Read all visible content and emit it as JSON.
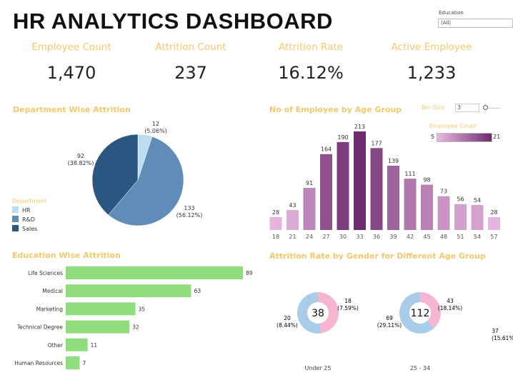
{
  "title": "HR ANALYTICS DASHBOARD",
  "filter": {
    "label": "Education",
    "value": "(All)"
  },
  "kpis": [
    {
      "label": "Employee Count",
      "value": "1,470"
    },
    {
      "label": "Attrition Count",
      "value": "237"
    },
    {
      "label": "Attrition Rate",
      "value": "16.12%"
    },
    {
      "label": "Active Employee",
      "value": "1,233"
    }
  ],
  "colors": {
    "accent": "#f2c86a",
    "hr": "#bcdcf0",
    "rd": "#5f8db8",
    "sales": "#2c5682",
    "education_bar": "#90dd7e",
    "male": "#a9cde9",
    "female": "#f6b6d2",
    "age_low": "#e6b5df",
    "age_high": "#6f2c6f"
  },
  "chart_data": [
    {
      "type": "pie",
      "title": "Department Wise Attrition",
      "legend_title": "Department",
      "legend_position": "left",
      "slices": [
        {
          "name": "HR",
          "value": 12,
          "label": "(5.06%)"
        },
        {
          "name": "R&D",
          "value": 133,
          "label": "(56.12%)"
        },
        {
          "name": "Sales",
          "value": 92,
          "label": "(38.82%)"
        }
      ]
    },
    {
      "type": "bar",
      "title": "No of Employee by Age Group",
      "bin_size_label": "Bin Size",
      "bin_size": "3",
      "color_legend": {
        "title": "Employee Count",
        "min": "5",
        "max": "21"
      },
      "categories": [
        "18",
        "21",
        "24",
        "27",
        "30",
        "33",
        "36",
        "39",
        "42",
        "45",
        "48",
        "51",
        "54",
        "57"
      ],
      "values": [
        28,
        43,
        91,
        164,
        190,
        213,
        177,
        139,
        111,
        98,
        73,
        56,
        54,
        28
      ]
    },
    {
      "type": "bar",
      "orientation": "horizontal",
      "title": "Education Wise Attrition",
      "categories": [
        "Life Sciences",
        "Medical",
        "Marketing",
        "Technical Degree",
        "Other",
        "Human Resources"
      ],
      "values": [
        89,
        63,
        35,
        32,
        11,
        7
      ]
    },
    {
      "type": "pie",
      "title": "Attrition Rate by Gender for Different Age Group",
      "groups": [
        {
          "name": "Under 25",
          "total": "38",
          "male": {
            "value": "20",
            "pct": "(8.44%)",
            "n": 20
          },
          "female": {
            "value": "18",
            "pct": "(7.59%)",
            "n": 18
          }
        },
        {
          "name": "25 - 34",
          "total": "112",
          "male": {
            "value": "69",
            "pct": "(29.11%)",
            "n": 69
          },
          "female": {
            "value": "43",
            "pct": "(18.14%)",
            "n": 43
          }
        },
        {
          "name": "",
          "total": "",
          "male": {
            "value": "37",
            "pct": "(15.61%",
            "n": 37
          }
        }
      ]
    }
  ]
}
